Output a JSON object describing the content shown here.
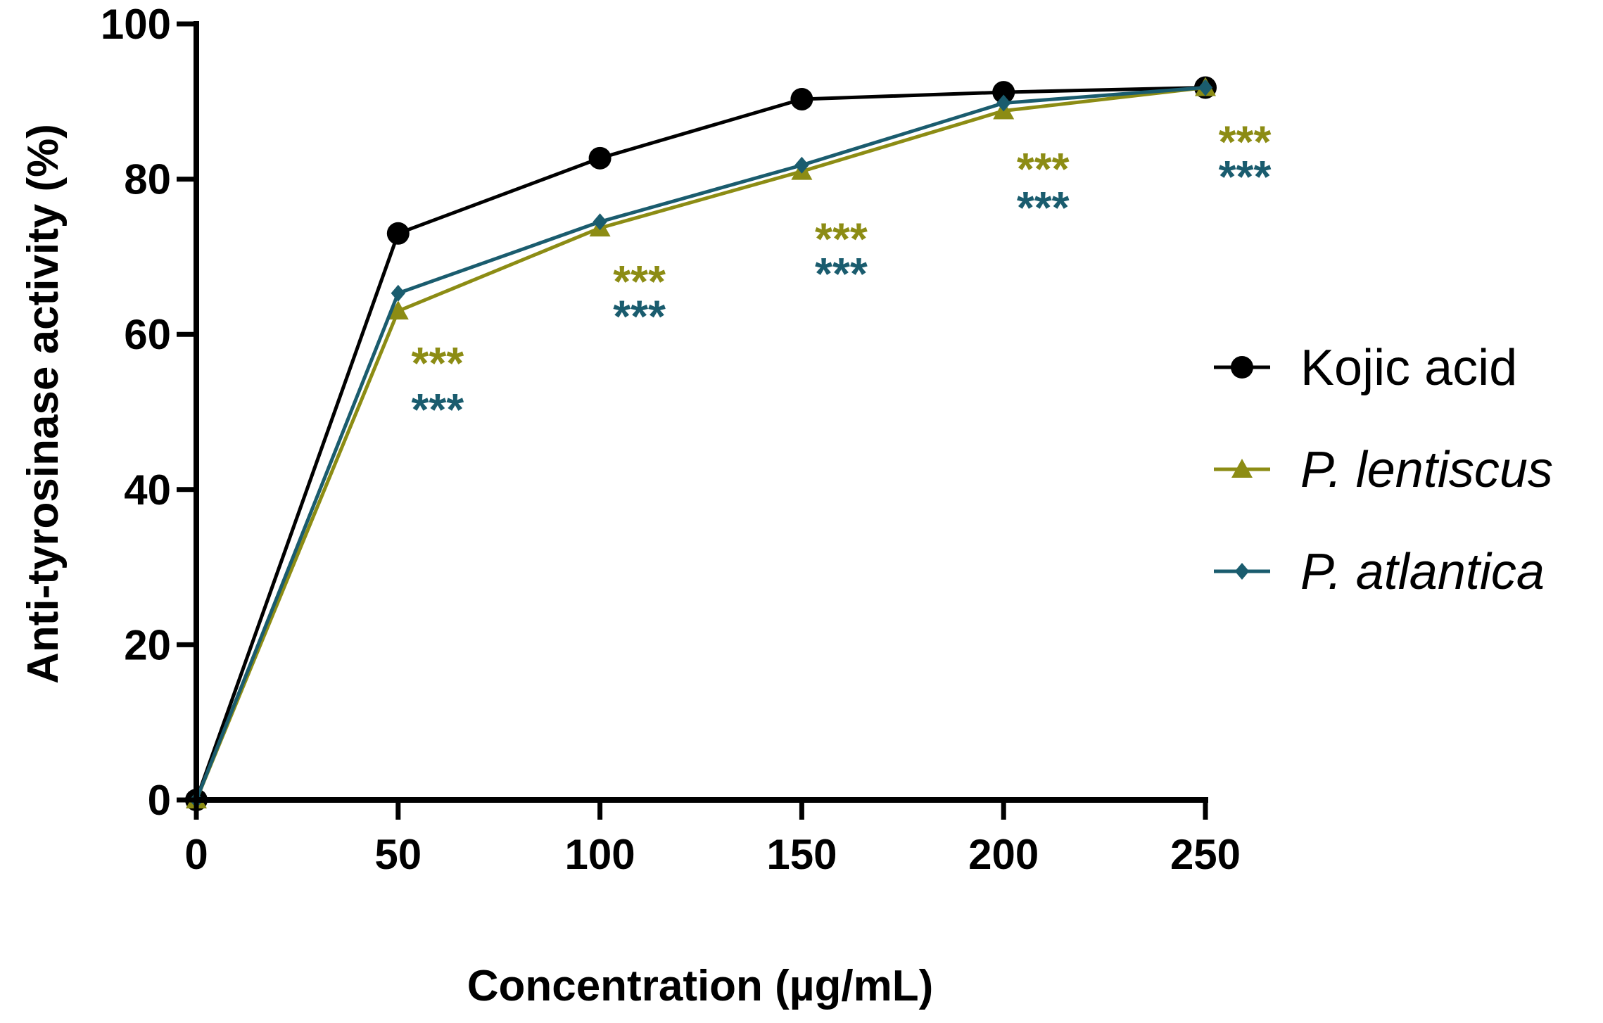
{
  "chart_data": {
    "type": "line",
    "title": "",
    "xlabel": "Concentration (µg/mL)",
    "ylabel": "Anti-tyrosinase activity (%)",
    "xlim": [
      0,
      250
    ],
    "ylim": [
      0,
      100
    ],
    "xticks": [
      0,
      50,
      100,
      150,
      200,
      250
    ],
    "yticks": [
      0,
      20,
      40,
      60,
      80,
      100
    ],
    "grid": false,
    "legend_position": "right",
    "x": [
      0,
      50,
      100,
      150,
      200,
      250
    ],
    "series": [
      {
        "name": "Kojic acid",
        "italic": false,
        "color": "#000000",
        "marker": "circle",
        "values": [
          0,
          73,
          82.7,
          90.3,
          91.2,
          91.8
        ]
      },
      {
        "name": "P. lentiscus",
        "italic": true,
        "color": "#8c8c14",
        "marker": "triangle",
        "values": [
          0,
          63,
          73.7,
          81,
          88.8,
          91.8
        ]
      },
      {
        "name": "P. atlantica",
        "italic": true,
        "color": "#1a5c6e",
        "marker": "diamond",
        "values": [
          0,
          65.3,
          74.5,
          81.8,
          89.8,
          91.8
        ]
      }
    ],
    "annotations": [
      {
        "text": "***",
        "series": "P. lentiscus",
        "x": 50,
        "y": 56.5
      },
      {
        "text": "***",
        "series": "P. atlantica",
        "x": 50,
        "y": 50.5
      },
      {
        "text": "***",
        "series": "P. lentiscus",
        "x": 100,
        "y": 67
      },
      {
        "text": "***",
        "series": "P. atlantica",
        "x": 100,
        "y": 62.5
      },
      {
        "text": "***",
        "series": "P. lentiscus",
        "x": 150,
        "y": 72.5
      },
      {
        "text": "***",
        "series": "P. atlantica",
        "x": 150,
        "y": 68
      },
      {
        "text": "***",
        "series": "P. lentiscus",
        "x": 200,
        "y": 81.5
      },
      {
        "text": "***",
        "series": "P. atlantica",
        "x": 200,
        "y": 76.5
      },
      {
        "text": "***",
        "series": "P. lentiscus",
        "x": 250,
        "y": 85
      },
      {
        "text": "***",
        "series": "P. atlantica",
        "x": 250,
        "y": 80.5
      }
    ]
  }
}
